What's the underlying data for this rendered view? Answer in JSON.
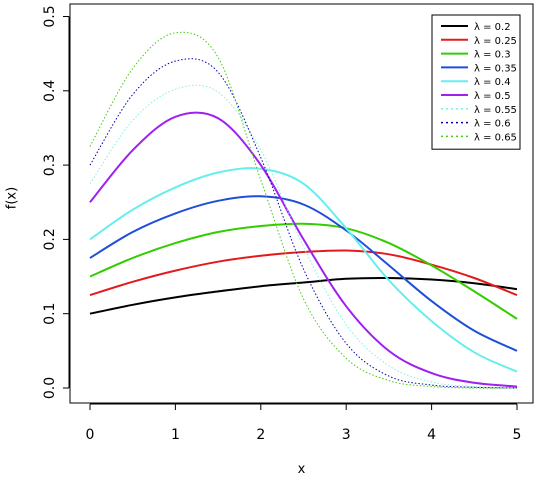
{
  "chart_data": {
    "type": "line",
    "title": "",
    "xlabel": "x",
    "ylabel": "f(x)",
    "xlim": [
      0,
      5
    ],
    "ylim": [
      0,
      0.5
    ],
    "xticks": [
      "0",
      "1",
      "2",
      "3",
      "4",
      "5"
    ],
    "yticks": [
      "0.0",
      "0.1",
      "0.2",
      "0.3",
      "0.4",
      "0.5"
    ],
    "grid": false,
    "legend_position": "top-right",
    "x": [
      0,
      0.5,
      1,
      1.5,
      2,
      2.5,
      3,
      3.5,
      4,
      4.5,
      5
    ],
    "series": [
      {
        "name": "λ = 0.2",
        "color": "#000000",
        "dash": "solid",
        "values": [
          0.1,
          0.112,
          0.122,
          0.13,
          0.137,
          0.142,
          0.147,
          0.148,
          0.146,
          0.141,
          0.133
        ]
      },
      {
        "name": "λ = 0.25",
        "color": "#e31a1c",
        "dash": "solid",
        "values": [
          0.125,
          0.143,
          0.158,
          0.17,
          0.178,
          0.183,
          0.185,
          0.18,
          0.166,
          0.148,
          0.125
        ]
      },
      {
        "name": "λ = 0.3",
        "color": "#33cc00",
        "dash": "solid",
        "values": [
          0.15,
          0.175,
          0.195,
          0.21,
          0.218,
          0.221,
          0.215,
          0.195,
          0.165,
          0.13,
          0.093
        ]
      },
      {
        "name": "λ = 0.35",
        "color": "#1f4fd8",
        "dash": "solid",
        "values": [
          0.175,
          0.21,
          0.235,
          0.252,
          0.258,
          0.247,
          0.212,
          0.165,
          0.117,
          0.077,
          0.05
        ]
      },
      {
        "name": "λ = 0.4",
        "color": "#66eeee",
        "dash": "solid",
        "values": [
          0.2,
          0.24,
          0.27,
          0.29,
          0.295,
          0.275,
          0.215,
          0.145,
          0.09,
          0.048,
          0.022
        ]
      },
      {
        "name": "λ = 0.5",
        "color": "#a020f0",
        "dash": "solid",
        "values": [
          0.25,
          0.32,
          0.365,
          0.363,
          0.3,
          0.2,
          0.11,
          0.05,
          0.02,
          0.007,
          0.002
        ]
      },
      {
        "name": "λ = 0.55",
        "color": "#80f0e0",
        "dash": "dotted",
        "values": [
          0.275,
          0.36,
          0.402,
          0.398,
          0.32,
          0.19,
          0.085,
          0.03,
          0.008,
          0.002,
          0.0
        ]
      },
      {
        "name": "λ = 0.6",
        "color": "#0000aa",
        "dash": "dotted",
        "values": [
          0.3,
          0.395,
          0.44,
          0.425,
          0.31,
          0.16,
          0.06,
          0.016,
          0.004,
          0.001,
          0.0
        ]
      },
      {
        "name": "λ = 0.65",
        "color": "#44cc11",
        "dash": "dotted",
        "values": [
          0.325,
          0.43,
          0.478,
          0.445,
          0.28,
          0.12,
          0.04,
          0.01,
          0.002,
          0.0,
          0.0
        ]
      }
    ]
  }
}
